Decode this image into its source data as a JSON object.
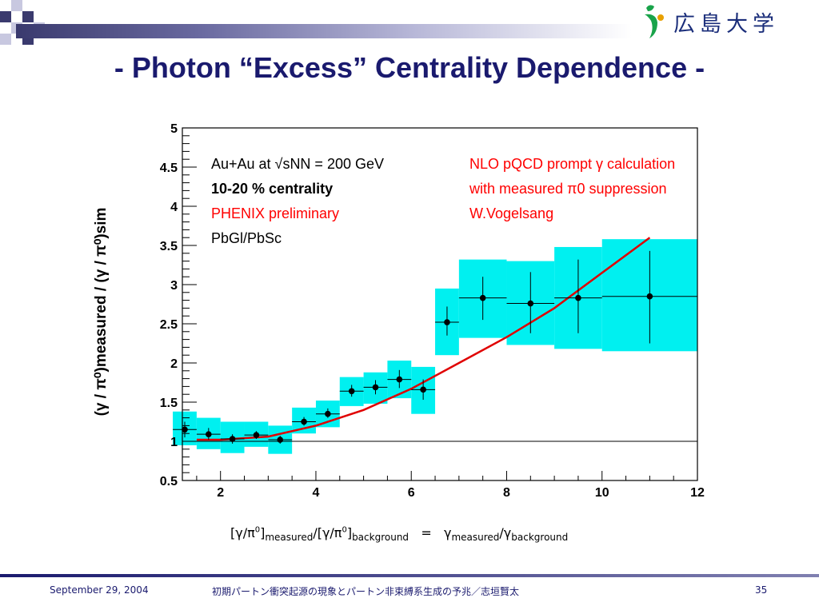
{
  "header": {
    "title": "- Photon “Excess” Centrality Dependence -",
    "logo_text": "広島大学",
    "colors": {
      "title": "#1a1a6e",
      "accent": "#3a3a6e"
    }
  },
  "chart_data": {
    "type": "scatter",
    "title": "",
    "xlabel": "",
    "ylabel": "(γ / π⁰)measured / (γ / π⁰)sim",
    "xlim": [
      1.2,
      12
    ],
    "ylim": [
      0.5,
      5
    ],
    "x_ticks": [
      "2",
      "4",
      "6",
      "8",
      "10",
      "12"
    ],
    "y_ticks": [
      "0.5",
      "1",
      "1.5",
      "2",
      "2.5",
      "3",
      "3.5",
      "4",
      "4.5",
      "5"
    ],
    "grid": false,
    "reference_line": {
      "y": 1
    },
    "annotations": {
      "left": [
        "Au+Au at √sNN = 200 GeV",
        "10-20 % centrality",
        "PHENIX preliminary",
        "PbGl/PbSc"
      ],
      "right": [
        "NLO pQCD prompt γ calculation",
        "with measured π0 suppression",
        "W.Vogelsang"
      ]
    },
    "colors": {
      "marker": "#000000",
      "band": "#00f0f0",
      "curve": "#e00000",
      "preliminary": "#ff0000"
    },
    "series": [
      {
        "kind": "data",
        "points": [
          {
            "x": 1.25,
            "y": 1.15,
            "xerr": 0.25,
            "ymin": 1.05,
            "ymax": 1.25,
            "sys_lo": 0.95,
            "sys_hi": 1.38
          },
          {
            "x": 1.75,
            "y": 1.09,
            "xerr": 0.25,
            "ymin": 1.02,
            "ymax": 1.17,
            "sys_lo": 0.9,
            "sys_hi": 1.3
          },
          {
            "x": 2.25,
            "y": 1.03,
            "xerr": 0.25,
            "ymin": 0.97,
            "ymax": 1.09,
            "sys_lo": 0.85,
            "sys_hi": 1.25
          },
          {
            "x": 2.75,
            "y": 1.08,
            "xerr": 0.25,
            "ymin": 1.03,
            "ymax": 1.13,
            "sys_lo": 0.93,
            "sys_hi": 1.25
          },
          {
            "x": 3.25,
            "y": 1.02,
            "xerr": 0.25,
            "ymin": 0.97,
            "ymax": 1.07,
            "sys_lo": 0.84,
            "sys_hi": 1.2
          },
          {
            "x": 3.75,
            "y": 1.25,
            "xerr": 0.25,
            "ymin": 1.2,
            "ymax": 1.31,
            "sys_lo": 1.1,
            "sys_hi": 1.43
          },
          {
            "x": 4.25,
            "y": 1.35,
            "xerr": 0.25,
            "ymin": 1.3,
            "ymax": 1.42,
            "sys_lo": 1.18,
            "sys_hi": 1.52
          },
          {
            "x": 4.75,
            "y": 1.64,
            "xerr": 0.25,
            "ymin": 1.57,
            "ymax": 1.72,
            "sys_lo": 1.45,
            "sys_hi": 1.82
          },
          {
            "x": 5.25,
            "y": 1.69,
            "xerr": 0.25,
            "ymin": 1.6,
            "ymax": 1.78,
            "sys_lo": 1.48,
            "sys_hi": 1.88
          },
          {
            "x": 5.75,
            "y": 1.79,
            "xerr": 0.25,
            "ymin": 1.68,
            "ymax": 1.91,
            "sys_lo": 1.55,
            "sys_hi": 2.03
          },
          {
            "x": 6.25,
            "y": 1.66,
            "xerr": 0.25,
            "ymin": 1.53,
            "ymax": 1.79,
            "sys_lo": 1.35,
            "sys_hi": 1.95
          },
          {
            "x": 6.75,
            "y": 2.52,
            "xerr": 0.25,
            "ymin": 2.35,
            "ymax": 2.72,
            "sys_lo": 2.1,
            "sys_hi": 2.95
          },
          {
            "x": 7.5,
            "y": 2.83,
            "xerr": 0.5,
            "ymin": 2.55,
            "ymax": 3.1,
            "sys_lo": 2.32,
            "sys_hi": 3.32
          },
          {
            "x": 8.5,
            "y": 2.76,
            "xerr": 0.5,
            "ymin": 2.38,
            "ymax": 3.16,
            "sys_lo": 2.23,
            "sys_hi": 3.3
          },
          {
            "x": 9.5,
            "y": 2.83,
            "xerr": 0.5,
            "ymin": 2.38,
            "ymax": 3.32,
            "sys_lo": 2.18,
            "sys_hi": 3.48
          },
          {
            "x": 11.0,
            "y": 2.85,
            "xerr": 1.0,
            "ymin": 2.25,
            "ymax": 3.43,
            "sys_lo": 2.15,
            "sys_hi": 3.58
          }
        ]
      },
      {
        "kind": "theory",
        "x": [
          1.5,
          2,
          3,
          4,
          5,
          6,
          7,
          8,
          9,
          10,
          11
        ],
        "y": [
          1.02,
          1.02,
          1.06,
          1.2,
          1.4,
          1.67,
          2.0,
          2.33,
          2.7,
          3.15,
          3.6
        ]
      }
    ]
  },
  "formula": {
    "open": "[γ/π",
    "pi_sup": "0",
    "measured_sub": "measured",
    "mid": "/[γ/π",
    "background_sub": "background",
    "equals": "=",
    "gamma1": "γ",
    "slash": "/",
    "gamma2": "γ"
  },
  "footer": {
    "date": "September 29, 2004",
    "subject": "初期パートン衝突起源の現象とパートン非束縛系生成の予兆／志垣賢太",
    "page_number": "35"
  }
}
